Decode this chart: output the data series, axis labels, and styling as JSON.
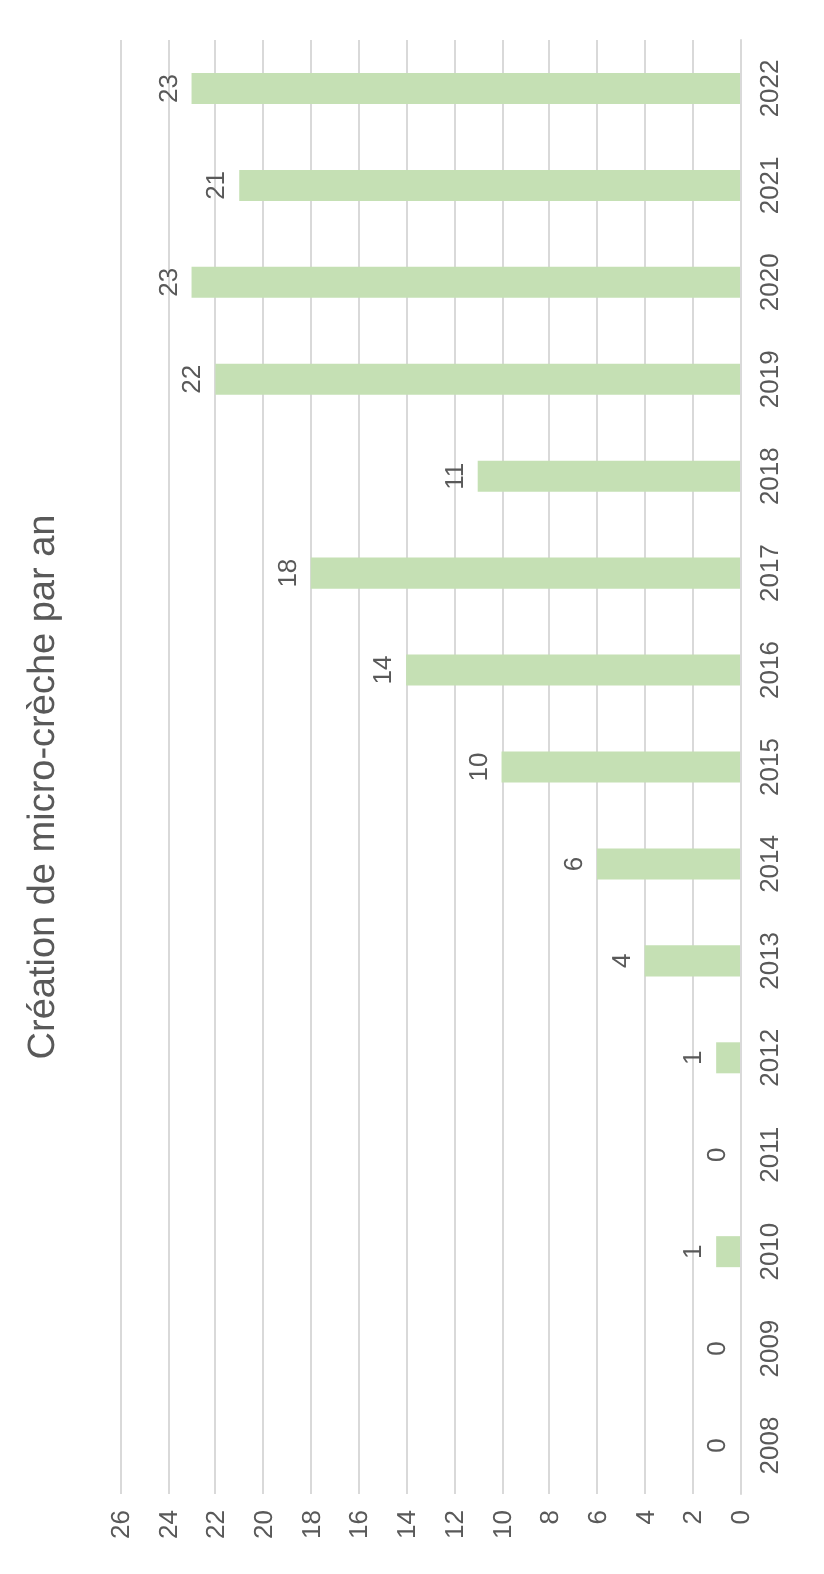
{
  "chart_data": {
    "type": "bar",
    "orientation": "horizontal",
    "title": "Création de micro-crèche par an",
    "categories": [
      "2022",
      "2021",
      "2020",
      "2019",
      "2018",
      "2017",
      "2016",
      "2015",
      "2014",
      "2013",
      "2012",
      "2011",
      "2010",
      "2009",
      "2008"
    ],
    "values": [
      23,
      21,
      23,
      22,
      11,
      18,
      14,
      10,
      6,
      4,
      1,
      0,
      1,
      0,
      0
    ],
    "color": "#c5e0b4",
    "xlim": [
      26,
      0
    ],
    "xticks": [
      26,
      24,
      22,
      20,
      18,
      16,
      14,
      12,
      10,
      8,
      6,
      4,
      2,
      0
    ],
    "grid": "x",
    "data_labels": true
  }
}
